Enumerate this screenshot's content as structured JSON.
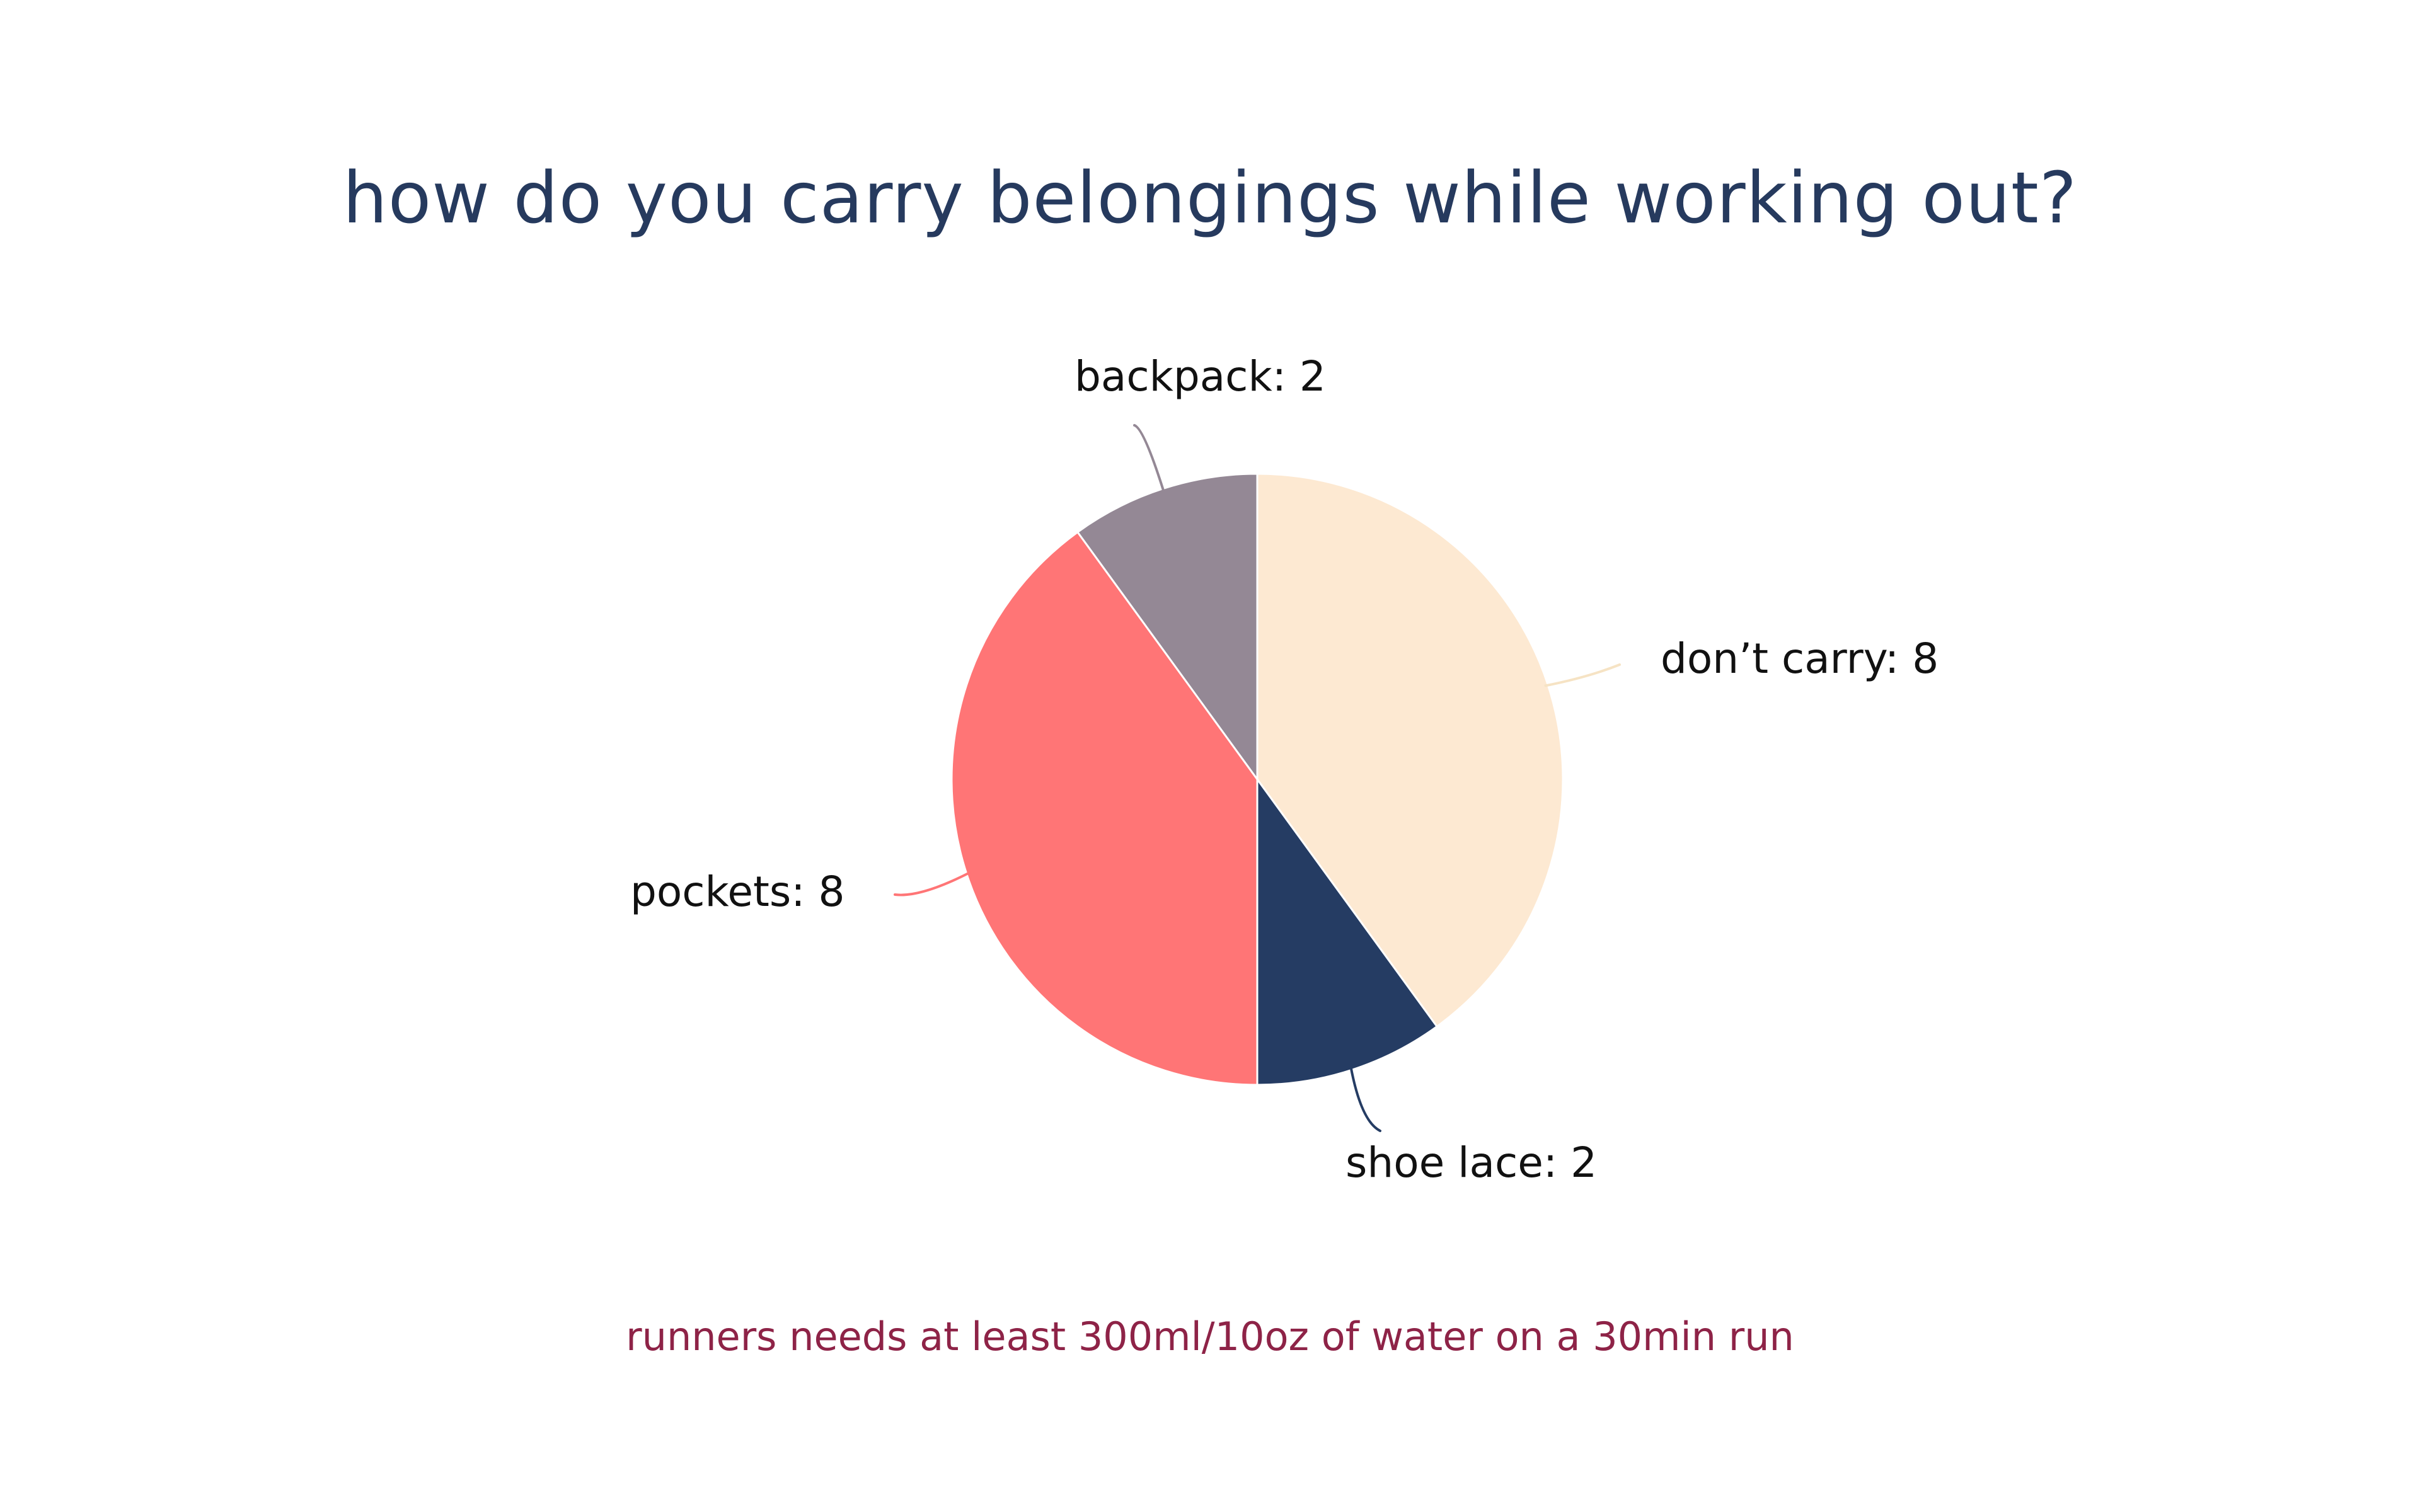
{
  "chart_data": {
    "type": "pie",
    "title": "how do you carry belongings while working out?",
    "footnote": "runners needs at least 300ml/10oz of water on a 30min run",
    "slices": [
      {
        "label": "don’t carry: 8",
        "category": "don’t carry",
        "value": 8,
        "color": "#fde9d2",
        "leader_color": "#f6e3c4"
      },
      {
        "label": "shoe lace: 2",
        "category": "shoe lace",
        "value": 2,
        "color": "#253c63",
        "leader_color": "#253c63"
      },
      {
        "label": "pockets: 8",
        "category": "pockets",
        "value": 8,
        "color": "#ff7576",
        "leader_color": "#ff7576"
      },
      {
        "label": "backpack: 2",
        "category": "backpack",
        "value": 2,
        "color": "#948895",
        "leader_color": "#948895"
      }
    ],
    "start_angle_degrees": 0,
    "direction": "clockwise",
    "legend": "none"
  },
  "colors": {
    "title": "#263a5e",
    "footnote": "#8e2347",
    "label_text": "#111111",
    "slice_border": "#ffffff"
  }
}
